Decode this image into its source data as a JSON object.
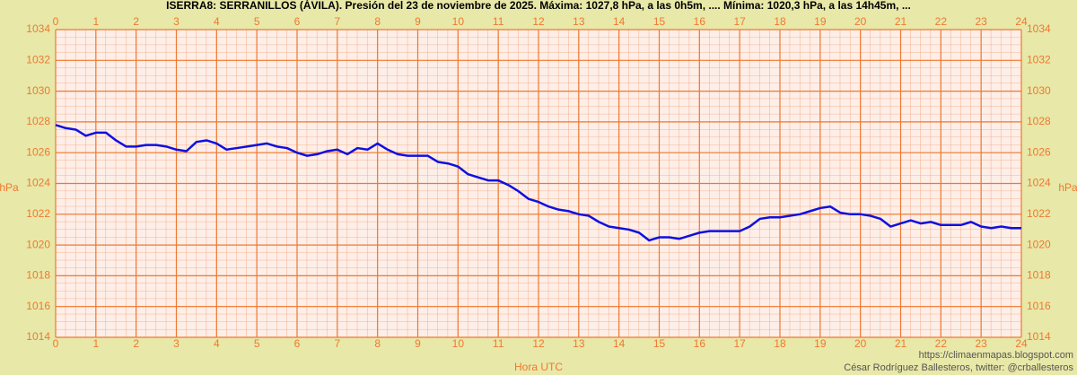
{
  "chart_data": {
    "type": "line",
    "title": "ISERRA8: SERRANILLOS (ÁVILA). Presión del 23 de noviembre de 2025. Máxima: 1027,8 hPa, a las 0h5m, .... Mínima: 1020,3 hPa, a las 14h45m, ...",
    "xlabel": "Hora UTC",
    "ylabel": "hPa",
    "credits": [
      "https://climaenmapas.blogspot.com",
      "César Rodríguez Ballesteros, twitter: @crballesteros"
    ],
    "x": [
      0,
      0.25,
      0.5,
      0.75,
      1,
      1.25,
      1.5,
      1.75,
      2,
      2.25,
      2.5,
      2.75,
      3,
      3.25,
      3.5,
      3.75,
      4,
      4.25,
      4.5,
      4.75,
      5,
      5.25,
      5.5,
      5.75,
      6,
      6.25,
      6.5,
      6.75,
      7,
      7.25,
      7.5,
      7.75,
      8,
      8.25,
      8.5,
      8.75,
      9,
      9.25,
      9.5,
      9.75,
      10,
      10.25,
      10.5,
      10.75,
      11,
      11.25,
      11.5,
      11.75,
      12,
      12.25,
      12.5,
      12.75,
      13,
      13.25,
      13.5,
      13.75,
      14,
      14.25,
      14.5,
      14.75,
      15,
      15.25,
      15.5,
      15.75,
      16,
      16.25,
      16.5,
      16.75,
      17,
      17.25,
      17.5,
      17.75,
      18,
      18.25,
      18.5,
      18.75,
      19,
      19.25,
      19.5,
      19.75,
      20,
      20.25,
      20.5,
      20.75,
      21,
      21.25,
      21.5,
      21.75,
      22,
      22.25,
      22.5,
      22.75,
      23,
      23.25,
      23.5,
      23.75,
      24
    ],
    "series": [
      {
        "name": "Presión",
        "color": "#1010e0",
        "values": [
          1027.8,
          1027.6,
          1027.5,
          1027.1,
          1027.3,
          1027.3,
          1026.8,
          1026.4,
          1026.4,
          1026.5,
          1026.5,
          1026.4,
          1026.2,
          1026.1,
          1026.7,
          1026.8,
          1026.6,
          1026.2,
          1026.3,
          1026.4,
          1026.5,
          1026.6,
          1026.4,
          1026.3,
          1026.0,
          1025.8,
          1025.9,
          1026.1,
          1026.2,
          1025.9,
          1026.3,
          1026.2,
          1026.6,
          1026.2,
          1025.9,
          1025.8,
          1025.8,
          1025.8,
          1025.4,
          1025.3,
          1025.1,
          1024.6,
          1024.4,
          1024.2,
          1024.2,
          1023.9,
          1023.5,
          1023.0,
          1022.8,
          1022.5,
          1022.3,
          1022.2,
          1022.0,
          1021.9,
          1021.5,
          1021.2,
          1021.1,
          1021.0,
          1020.8,
          1020.3,
          1020.5,
          1020.5,
          1020.4,
          1020.6,
          1020.8,
          1020.9,
          1020.9,
          1020.9,
          1020.9,
          1021.2,
          1021.7,
          1021.8,
          1021.8,
          1021.9,
          1022.0,
          1022.2,
          1022.4,
          1022.5,
          1022.1,
          1022.0,
          1022.0,
          1021.9,
          1021.7,
          1021.2,
          1021.4,
          1021.6,
          1021.4,
          1021.5,
          1021.3,
          1021.3,
          1021.3,
          1021.5,
          1021.2,
          1021.1,
          1021.2,
          1021.1,
          1021.1
        ]
      }
    ],
    "xlim": [
      0,
      24
    ],
    "xticks": [
      0,
      1,
      2,
      3,
      4,
      5,
      6,
      7,
      8,
      9,
      10,
      11,
      12,
      13,
      14,
      15,
      16,
      17,
      18,
      19,
      20,
      21,
      22,
      23,
      24
    ],
    "ylim": [
      1014,
      1034
    ],
    "yticks": [
      1014,
      1016,
      1018,
      1020,
      1022,
      1024,
      1026,
      1028,
      1030,
      1032,
      1034
    ],
    "grid": true
  }
}
